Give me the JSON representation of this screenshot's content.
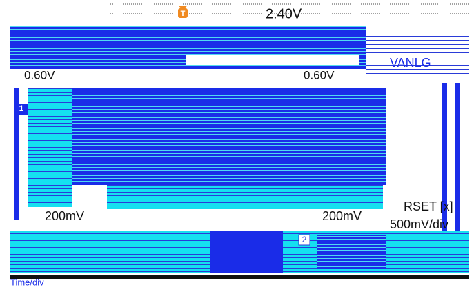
{
  "header": {
    "trigger_marker": "T",
    "trigger_level": "2.40V"
  },
  "channel_labels": {
    "left_offset": "0.60V",
    "right_offset": "0.60V",
    "source": "VANLG",
    "ch1_marker": "1",
    "ch2_marker": "2",
    "left_scale": "200mV",
    "right_scale": "200mV",
    "ref_name": "RSET [x]",
    "ref_scale": "500mV/div"
  },
  "footer": {
    "time_label": "Time/div"
  }
}
